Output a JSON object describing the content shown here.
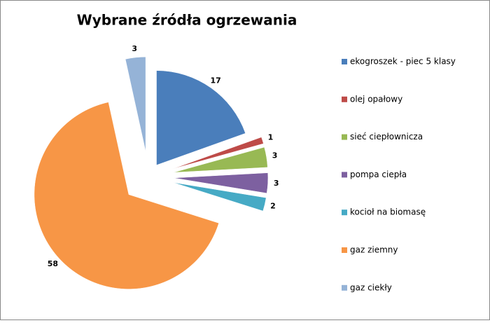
{
  "chart_data": {
    "type": "pie",
    "title": "Wybrane źródła ogrzewania",
    "categories": [
      "ekogroszek - piec 5 klasy",
      "olej opałowy",
      "sieć ciepłownicza",
      "pompa ciepła",
      "kocioł na biomasę",
      "gaz ziemny",
      "gaz ciekły"
    ],
    "values": [
      17,
      1,
      3,
      3,
      2,
      58,
      3
    ],
    "colors": [
      "#4a7ebb",
      "#be4b48",
      "#98b954",
      "#7d60a0",
      "#46aac5",
      "#f79646",
      "#95b3d7"
    ],
    "legend": "right"
  }
}
